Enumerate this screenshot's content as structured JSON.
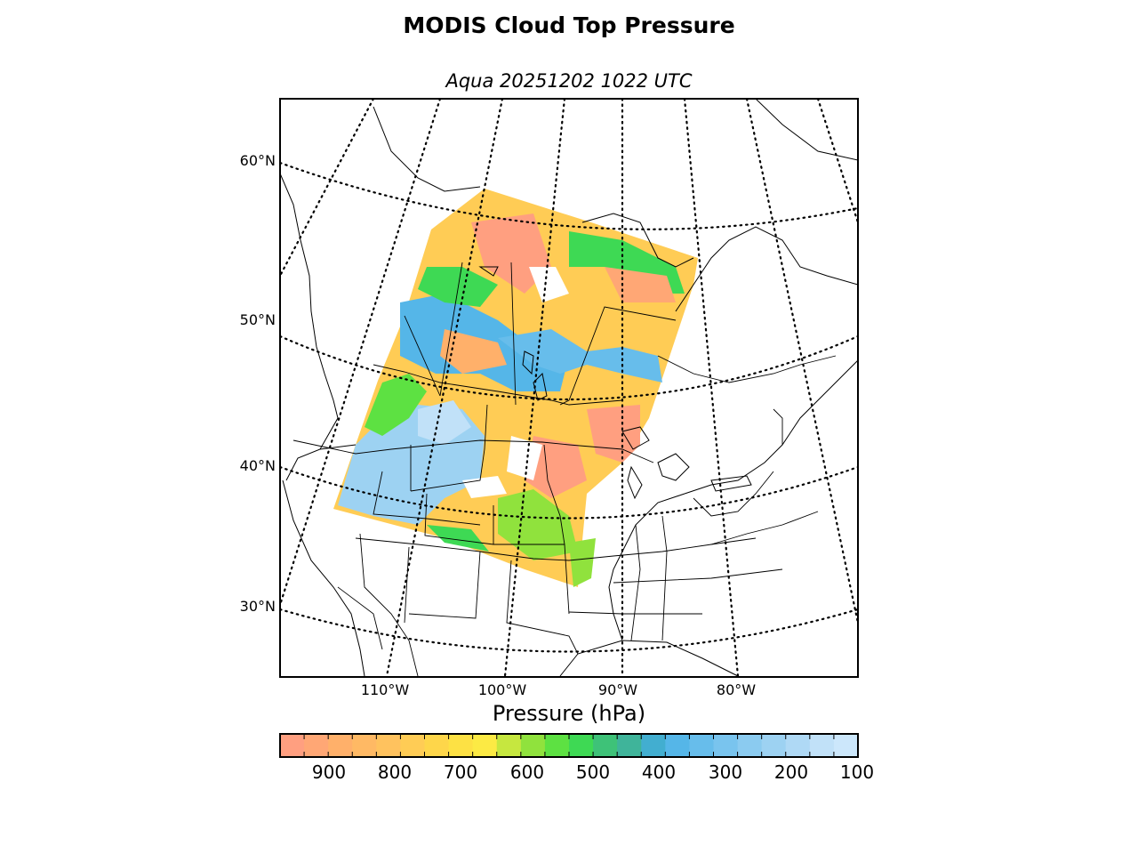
{
  "title": "MODIS Cloud Top Pressure",
  "subtitle": "Aqua 20251202 1022 UTC",
  "lat_labels": [
    "60°N",
    "50°N",
    "40°N",
    "30°N"
  ],
  "lon_labels": [
    "110°W",
    "100°W",
    "90°W",
    "80°W"
  ],
  "colorbar": {
    "label": "Pressure (hPa)",
    "ticks": [
      "900",
      "800",
      "700",
      "600",
      "500",
      "400",
      "300",
      "200",
      "100"
    ],
    "colors": [
      "#ff9f80",
      "#ffa775",
      "#ffb06a",
      "#ffb964",
      "#ffc25e",
      "#ffcc55",
      "#fed64a",
      "#fde144",
      "#fcea44",
      "#c6e73f",
      "#90e23d",
      "#5de142",
      "#3ed954",
      "#3ec278",
      "#3fb49a",
      "#42aed0",
      "#55b6e8",
      "#67bdeb",
      "#79c4ee",
      "#8bcbf0",
      "#9dd2f2",
      "#afd9f5",
      "#c1e1f8",
      "#cce7fb"
    ]
  }
}
